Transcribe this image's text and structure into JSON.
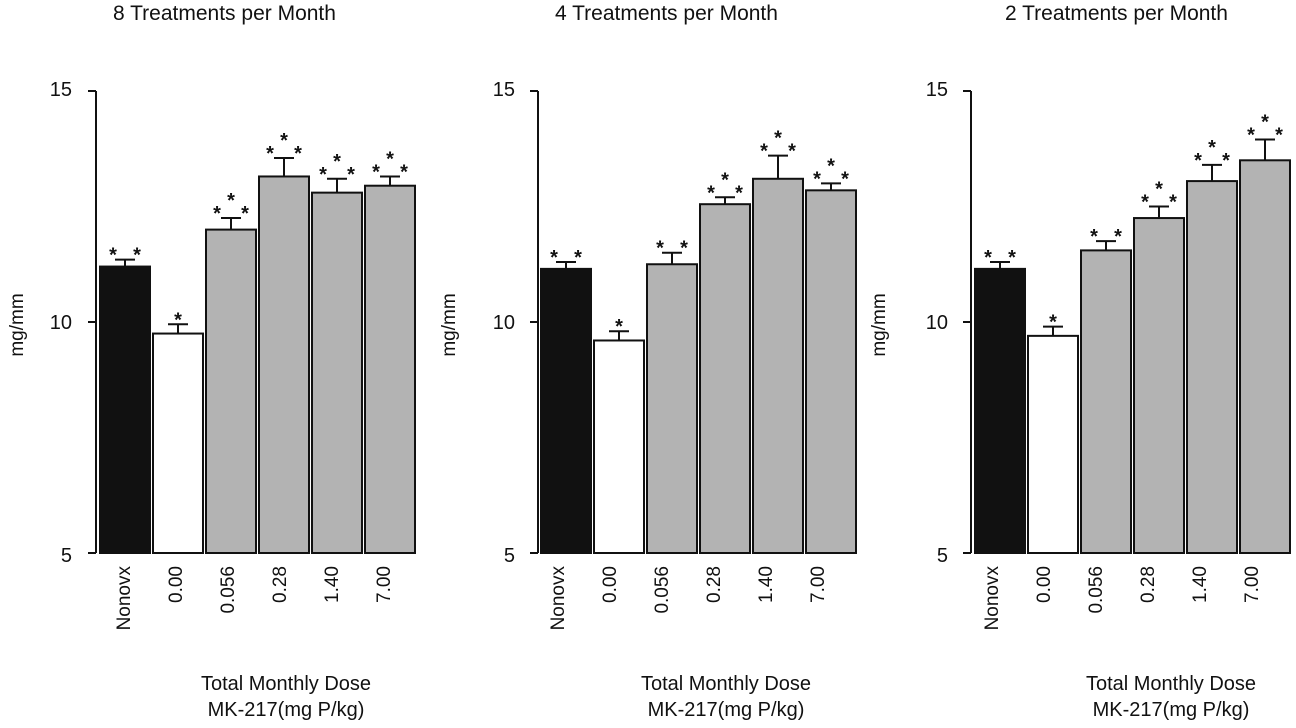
{
  "colors": {
    "nonovx": "#111111",
    "control": "#ffffff",
    "treated": "#b3b3b3",
    "axis": "#111111"
  },
  "chart_data": [
    {
      "type": "bar",
      "title": "8 Treatments per Month",
      "ylabel": "mg/mm",
      "xlabel_line1": "Total Monthly Dose",
      "xlabel_line2": "MK-217(mg P/kg)",
      "ylim": [
        5,
        15
      ],
      "yticks": [
        "15",
        "10",
        "5"
      ],
      "categories": [
        "Nonovx",
        "0.00",
        "0.056",
        "0.28",
        "1.40",
        "7.00"
      ],
      "values": [
        11.2,
        9.75,
        12.0,
        13.15,
        12.8,
        12.95
      ],
      "errors": [
        0.15,
        0.2,
        0.25,
        0.4,
        0.3,
        0.2
      ],
      "significance": [
        "* *",
        "*",
        "* * *",
        "* * *",
        "* * *",
        "* * *"
      ]
    },
    {
      "type": "bar",
      "title": "4 Treatments per Month",
      "ylabel": "mg/mm",
      "xlabel_line1": "Total Monthly Dose",
      "xlabel_line2": "MK-217(mg P/kg)",
      "ylim": [
        5,
        15
      ],
      "yticks": [
        "15",
        "10",
        "5"
      ],
      "categories": [
        "Nonovx",
        "0.00",
        "0.056",
        "0.28",
        "1.40",
        "7.00"
      ],
      "values": [
        11.15,
        9.6,
        11.25,
        12.55,
        13.1,
        12.85
      ],
      "errors": [
        0.15,
        0.2,
        0.25,
        0.15,
        0.5,
        0.15
      ],
      "significance": [
        "* *",
        "*",
        "* *",
        "* * *",
        "* * *",
        "* * *"
      ]
    },
    {
      "type": "bar",
      "title": "2 Treatments per Month",
      "ylabel": "mg/mm",
      "xlabel_line1": "Total Monthly Dose",
      "xlabel_line2": "MK-217(mg P/kg)",
      "ylim": [
        5,
        15
      ],
      "yticks": [
        "15",
        "10",
        "5"
      ],
      "categories": [
        "Nonovx",
        "0.00",
        "0.056",
        "0.28",
        "1.40",
        "7.00"
      ],
      "values": [
        11.15,
        9.7,
        11.55,
        12.25,
        13.05,
        13.5
      ],
      "errors": [
        0.15,
        0.2,
        0.2,
        0.25,
        0.35,
        0.45
      ],
      "significance": [
        "* *",
        "*",
        "* *",
        "* * *",
        "* * *",
        "* * *"
      ]
    }
  ]
}
